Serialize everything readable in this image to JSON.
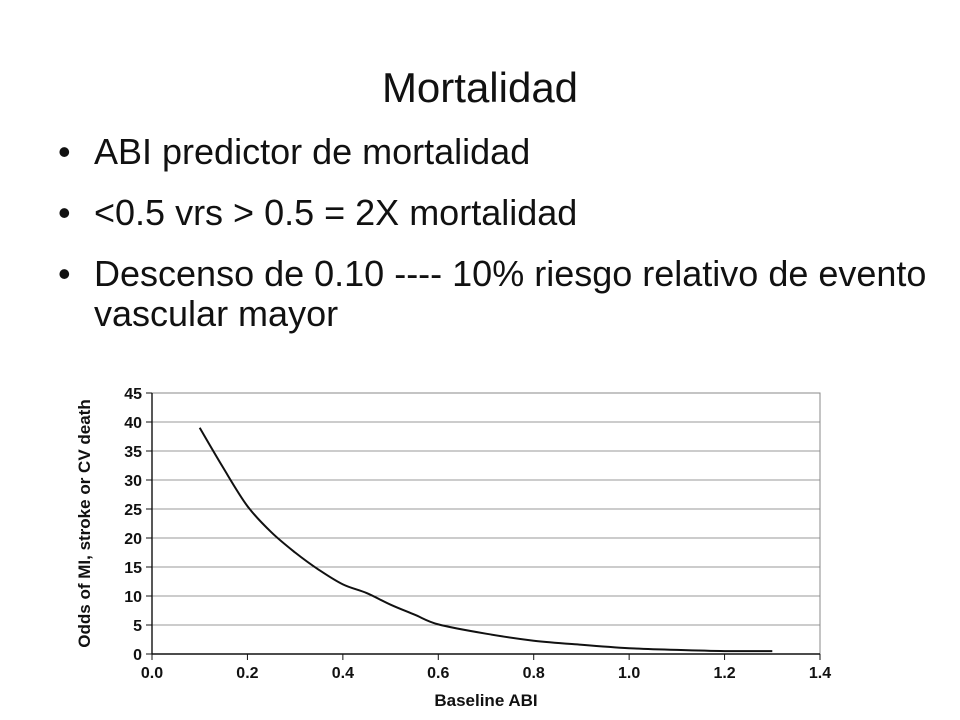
{
  "slide": {
    "title": "Mortalidad",
    "bullets": [
      {
        "marker": "•",
        "text": "ABI predictor de mortalidad"
      },
      {
        "marker": "•",
        "text": "<0.5 vrs > 0.5 = 2X mortalidad"
      },
      {
        "marker": "•",
        "text": "Descenso de  0.10 ---- 10% riesgo relativo de evento vascular mayor"
      }
    ]
  },
  "chart_data": {
    "type": "line",
    "title": "",
    "xlabel": "Baseline ABI",
    "ylabel": "Odds of MI, stroke or CV death",
    "xlim": [
      0.0,
      1.4
    ],
    "ylim": [
      0,
      45
    ],
    "xticks": [
      "0.0",
      "0.2",
      "0.4",
      "0.6",
      "0.8",
      "1.0",
      "1.2",
      "1.4"
    ],
    "yticks": [
      "0",
      "5",
      "10",
      "15",
      "20",
      "25",
      "30",
      "35",
      "40",
      "45"
    ],
    "grid": "horizontal",
    "legend": "none",
    "line_color": "#111111",
    "gridline_color": "#9a9a9a",
    "series": [
      {
        "x": [
          0.1,
          0.15,
          0.2,
          0.25,
          0.3,
          0.35,
          0.4,
          0.45,
          0.5,
          0.55,
          0.6,
          0.7,
          0.8,
          0.9,
          1.0,
          1.1,
          1.2,
          1.3
        ],
        "y": [
          39,
          32,
          25.5,
          21,
          17.5,
          14.5,
          12,
          10.5,
          8.5,
          6.8,
          5.1,
          3.5,
          2.3,
          1.6,
          1.0,
          0.7,
          0.5,
          0.5
        ]
      }
    ]
  }
}
